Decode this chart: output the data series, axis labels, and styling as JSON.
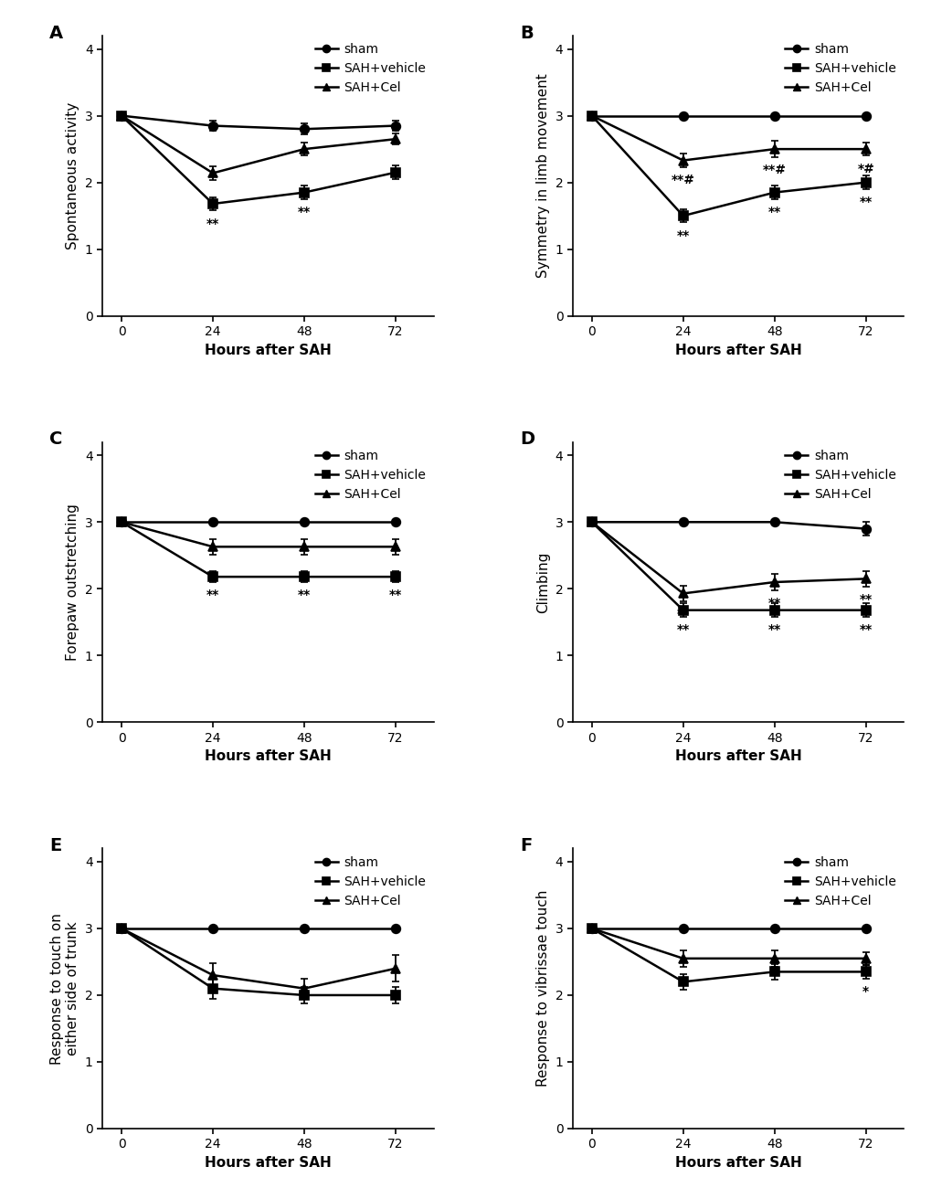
{
  "x": [
    0,
    24,
    48,
    72
  ],
  "panels": [
    {
      "label": "A",
      "ylabel": "Spontaneous activity",
      "sham_mean": [
        3.0,
        2.85,
        2.8,
        2.85
      ],
      "sham_sem": [
        0.0,
        0.07,
        0.08,
        0.07
      ],
      "vehicle_mean": [
        3.0,
        1.68,
        1.85,
        2.15
      ],
      "vehicle_sem": [
        0.0,
        0.1,
        0.1,
        0.1
      ],
      "cel_mean": [
        3.0,
        2.14,
        2.5,
        2.65
      ],
      "cel_sem": [
        0.0,
        0.1,
        0.1,
        0.08
      ],
      "annotations": [
        {
          "x_idx": 1,
          "text": "**",
          "ref": "vehicle"
        },
        {
          "x_idx": 2,
          "text": "**",
          "ref": "vehicle"
        }
      ]
    },
    {
      "label": "B",
      "ylabel": "Symmetry in limb movement",
      "sham_mean": [
        3.0,
        3.0,
        3.0,
        3.0
      ],
      "sham_sem": [
        0.0,
        0.0,
        0.0,
        0.0
      ],
      "vehicle_mean": [
        3.0,
        1.5,
        1.85,
        2.0
      ],
      "vehicle_sem": [
        0.0,
        0.1,
        0.1,
        0.1
      ],
      "cel_mean": [
        3.0,
        2.33,
        2.5,
        2.5
      ],
      "cel_sem": [
        0.0,
        0.1,
        0.12,
        0.1
      ],
      "annotations": [
        {
          "x_idx": 1,
          "text": "**#",
          "ref": "cel",
          "extra_below": "**"
        },
        {
          "x_idx": 2,
          "text": "**#",
          "ref": "cel",
          "extra_below": "**"
        },
        {
          "x_idx": 3,
          "text": "*#",
          "ref": "cel",
          "extra_below": "**"
        }
      ]
    },
    {
      "label": "C",
      "ylabel": "Forepaw outstretching",
      "sham_mean": [
        3.0,
        3.0,
        3.0,
        3.0
      ],
      "sham_sem": [
        0.0,
        0.0,
        0.0,
        0.0
      ],
      "vehicle_mean": [
        3.0,
        2.18,
        2.18,
        2.18
      ],
      "vehicle_sem": [
        0.0,
        0.08,
        0.08,
        0.08
      ],
      "cel_mean": [
        3.0,
        2.63,
        2.63,
        2.63
      ],
      "cel_sem": [
        0.0,
        0.12,
        0.12,
        0.12
      ],
      "annotations": [
        {
          "x_idx": 1,
          "text": "**",
          "ref": "vehicle"
        },
        {
          "x_idx": 2,
          "text": "**",
          "ref": "vehicle"
        },
        {
          "x_idx": 3,
          "text": "**",
          "ref": "vehicle"
        }
      ]
    },
    {
      "label": "D",
      "ylabel": "Climbing",
      "sham_mean": [
        3.0,
        3.0,
        3.0,
        2.9
      ],
      "sham_sem": [
        0.0,
        0.0,
        0.0,
        0.1
      ],
      "vehicle_mean": [
        3.0,
        1.68,
        1.68,
        1.68
      ],
      "vehicle_sem": [
        0.0,
        0.1,
        0.1,
        0.1
      ],
      "cel_mean": [
        3.0,
        1.93,
        2.1,
        2.15
      ],
      "cel_sem": [
        0.0,
        0.12,
        0.12,
        0.12
      ],
      "annotations": [
        {
          "x_idx": 1,
          "text": "**",
          "ref": "cel",
          "extra_below": "**"
        },
        {
          "x_idx": 2,
          "text": "**",
          "ref": "cel",
          "extra_below": "**"
        },
        {
          "x_idx": 3,
          "text": "**",
          "ref": "cel",
          "extra_below": "**"
        }
      ]
    },
    {
      "label": "E",
      "ylabel": "Response to touch on\neither side of trunk",
      "sham_mean": [
        3.0,
        3.0,
        3.0,
        3.0
      ],
      "sham_sem": [
        0.0,
        0.0,
        0.0,
        0.0
      ],
      "vehicle_mean": [
        3.0,
        2.1,
        2.0,
        2.0
      ],
      "vehicle_sem": [
        0.0,
        0.15,
        0.12,
        0.12
      ],
      "cel_mean": [
        3.0,
        2.3,
        2.1,
        2.4
      ],
      "cel_sem": [
        0.0,
        0.18,
        0.15,
        0.2
      ],
      "annotations": []
    },
    {
      "label": "F",
      "ylabel": "Response to vibrissae touch",
      "sham_mean": [
        3.0,
        3.0,
        3.0,
        3.0
      ],
      "sham_sem": [
        0.0,
        0.0,
        0.0,
        0.0
      ],
      "vehicle_mean": [
        3.0,
        2.2,
        2.35,
        2.35
      ],
      "vehicle_sem": [
        0.0,
        0.12,
        0.12,
        0.1
      ],
      "cel_mean": [
        3.0,
        2.55,
        2.55,
        2.55
      ],
      "cel_sem": [
        0.0,
        0.12,
        0.12,
        0.1
      ],
      "annotations": [
        {
          "x_idx": 3,
          "text": "*",
          "ref": "vehicle"
        }
      ]
    }
  ],
  "legend_labels": [
    "sham",
    "SAH+vehicle",
    "SAH+Cel"
  ],
  "xlabel": "Hours after SAH",
  "ylim": [
    0,
    4.2
  ],
  "yticks": [
    0,
    1,
    2,
    3,
    4
  ],
  "xticks": [
    0,
    24,
    48,
    72
  ],
  "line_color": "#000000",
  "marker_sham": "o",
  "marker_vehicle": "s",
  "marker_cel": "^",
  "markersize": 7,
  "linewidth": 1.8,
  "capsize": 3,
  "elinewidth": 1.3,
  "font_size_label": 11,
  "font_size_tick": 10,
  "font_size_panel": 14,
  "font_size_annot": 10,
  "font_size_legend": 10,
  "background_color": "#ffffff"
}
